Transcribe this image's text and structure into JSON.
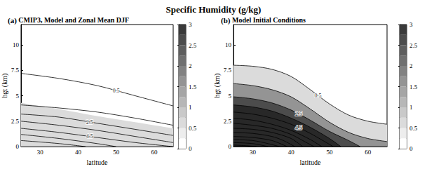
{
  "chart_data": {
    "type": "contour",
    "title": "Specific Humidity (g/kg)",
    "panels": [
      {
        "type": "contour",
        "panel": "(a)",
        "title": "CMIP3, Model and Zonal Mean DJF",
        "x_label": "latitude",
        "y_label": "hgt (km)",
        "xlim": [
          25,
          65
        ],
        "xticks": [
          30,
          40,
          50,
          60
        ],
        "ylim": [
          0,
          12
        ],
        "yticks": [
          0,
          2.5,
          5,
          7.5,
          10
        ],
        "colorbar": {
          "range": [
            0,
            3
          ],
          "ticks": [
            0,
            0.5,
            1,
            1.5,
            2,
            2.5,
            3
          ],
          "levels": [
            0,
            0.25,
            0.5,
            0.75,
            1,
            1.25,
            1.5,
            1.75,
            2,
            2.25,
            2.5,
            2.75,
            3
          ]
        },
        "shading": [
          {
            "level": 0.5,
            "x": [
              25,
              35,
              45,
              55,
              65
            ],
            "values": [
              4.3,
              3.7,
              3.0,
              2.4,
              1.8
            ]
          }
        ],
        "contours": [
          {
            "level": 0.5,
            "x": [
              25,
              35,
              45,
              55,
              65
            ],
            "values": [
              7.2,
              6.7,
              6.0,
              5.0,
              4.0
            ]
          },
          {
            "level": 1.5,
            "x": [
              25,
              35,
              45,
              55,
              65
            ],
            "values": [
              4.1,
              3.8,
              3.4,
              2.8,
              2.1
            ]
          },
          {
            "level": 2.5,
            "x": [
              25,
              35,
              45,
              55,
              65
            ],
            "values": [
              3.2,
              2.9,
              2.3,
              1.7,
              1.1
            ]
          },
          {
            "level": 3.5,
            "x": [
              25,
              35,
              45,
              55,
              65
            ],
            "values": [
              2.5,
              2.1,
              1.6,
              1.0,
              0.4
            ]
          },
          {
            "level": 4.5,
            "x": [
              25,
              35,
              45,
              55,
              65
            ],
            "values": [
              1.8,
              1.4,
              0.9,
              0.4,
              0
            ]
          },
          {
            "level": 5.5,
            "x": [
              25,
              35,
              45,
              50
            ],
            "values": [
              1.2,
              0.8,
              0.3,
              0
            ]
          },
          {
            "level": 6.5,
            "x": [
              25,
              35,
              42
            ],
            "values": [
              0.6,
              0.3,
              0
            ]
          }
        ],
        "contour_labels": [
          {
            "text": "0.5",
            "x": 50,
            "y": 5.5
          },
          {
            "text": "2.5",
            "x": 43,
            "y": 2.4
          },
          {
            "text": "4.5",
            "x": 43,
            "y": 1.0
          }
        ]
      },
      {
        "type": "filled_contour",
        "panel": "(b)",
        "title": "Model Initial Conditions",
        "x_label": "latitude",
        "y_label": "hgt (km)",
        "xlim": [
          25,
          65
        ],
        "xticks": [
          30,
          40,
          50,
          60
        ],
        "ylim": [
          0,
          12
        ],
        "yticks": [
          0,
          2.5,
          5,
          7.5,
          10
        ],
        "colorbar": {
          "range": [
            0,
            3
          ],
          "ticks": [
            0,
            0.5,
            1,
            1.5,
            2,
            2.5,
            3
          ],
          "levels": [
            0,
            0.25,
            0.5,
            0.75,
            1,
            1.25,
            1.5,
            1.75,
            2,
            2.25,
            2.5,
            2.75,
            3
          ]
        },
        "contours": [
          {
            "level": 0.5,
            "x": [
              25,
              30,
              35,
              40,
              45,
              50,
              55,
              60,
              65
            ],
            "values": [
              8.0,
              7.9,
              7.6,
              6.9,
              5.6,
              4.2,
              3.1,
              2.5,
              2.2
            ]
          },
          {
            "level": 1.5,
            "x": [
              25,
              30,
              35,
              40,
              45,
              50,
              55,
              60,
              65
            ],
            "values": [
              6.2,
              6.0,
              5.6,
              4.9,
              3.7,
              2.4,
              1.4,
              0.8,
              0.5
            ]
          },
          {
            "level": 2.5,
            "x": [
              25,
              30,
              35,
              40,
              45,
              50,
              55,
              58
            ],
            "values": [
              4.9,
              4.7,
              4.3,
              3.6,
              2.6,
              1.5,
              0.6,
              0
            ]
          },
          {
            "level": 3.5,
            "x": [
              25,
              30,
              35,
              40,
              45,
              50,
              53
            ],
            "values": [
              4.1,
              3.9,
              3.5,
              2.8,
              1.9,
              0.8,
              0
            ]
          },
          {
            "level": 4.5,
            "x": [
              25,
              30,
              35,
              40,
              45,
              51
            ],
            "values": [
              3.4,
              3.2,
              2.8,
              2.2,
              1.3,
              0
            ]
          },
          {
            "level": 5.5,
            "x": [
              25,
              30,
              35,
              40,
              45,
              48
            ],
            "values": [
              2.8,
              2.6,
              2.2,
              1.6,
              0.7,
              0
            ]
          },
          {
            "level": 6.5,
            "x": [
              25,
              30,
              35,
              40,
              44,
              46
            ],
            "values": [
              2.3,
              2.1,
              1.8,
              1.2,
              0.4,
              0
            ]
          },
          {
            "level": 7.5,
            "x": [
              25,
              30,
              35,
              40,
              43
            ],
            "values": [
              1.8,
              1.7,
              1.4,
              0.8,
              0
            ]
          },
          {
            "level": 8.5,
            "x": [
              25,
              30,
              35,
              38,
              41
            ],
            "values": [
              1.4,
              1.3,
              1.0,
              0.6,
              0
            ]
          },
          {
            "level": 9.5,
            "x": [
              25,
              30,
              35,
              39
            ],
            "values": [
              1.0,
              0.9,
              0.6,
              0
            ]
          },
          {
            "level": 10.5,
            "x": [
              25,
              30,
              34,
              37
            ],
            "values": [
              0.7,
              0.6,
              0.3,
              0
            ]
          },
          {
            "level": 11.5,
            "x": [
              25,
              30,
              34
            ],
            "values": [
              0.4,
              0.3,
              0
            ]
          },
          {
            "level": 12.5,
            "x": [
              25,
              28,
              31
            ],
            "values": [
              0.15,
              0.1,
              0
            ]
          }
        ],
        "contour_labels": [
          {
            "text": "0.5",
            "x": 47,
            "y": 5.0
          },
          {
            "text": "2.5",
            "x": 42,
            "y": 3.2
          },
          {
            "text": "4.5",
            "x": 42,
            "y": 1.84
          }
        ]
      }
    ]
  }
}
